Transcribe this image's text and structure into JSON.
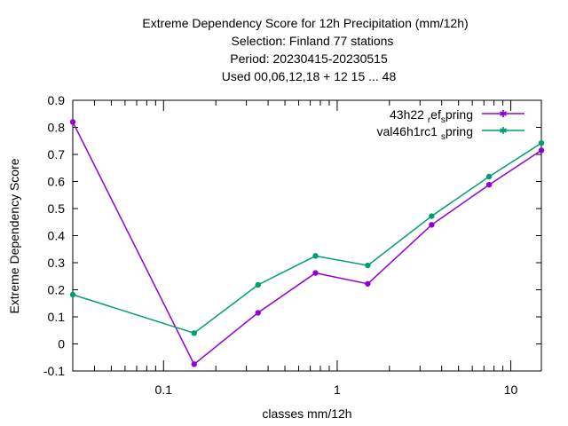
{
  "chart_data": {
    "type": "line",
    "title_lines": [
      "Extreme Dependency Score  for 12h Precipitation (mm/12h)",
      "Selection: Finland     77 stations",
      "Period: 20230415-20230515",
      "Used  00,06,12,18  + 12 15 ... 48"
    ],
    "xlabel": "classes mm/12h",
    "ylabel": "Extreme Dependency Score",
    "x_scale": "log",
    "xlim": [
      0.03,
      15
    ],
    "ylim": [
      -0.1,
      0.9
    ],
    "x_ticks": [
      {
        "value": 0.1,
        "label": "0.1"
      },
      {
        "value": 1,
        "label": "1"
      },
      {
        "value": 10,
        "label": "10"
      }
    ],
    "y_ticks": [
      "-0.1",
      "0",
      "0.1",
      "0.2",
      "0.3",
      "0.4",
      "0.5",
      "0.6",
      "0.7",
      "0.8",
      "0.9"
    ],
    "grid": false,
    "legend_position": "top-right",
    "series": [
      {
        "name_main": "43h22",
        "name_sub1": "r",
        "name_mid": "ef",
        "name_sub2": "s",
        "name_end": "pring",
        "color": "#9400d3",
        "x": [
          0.03,
          0.15,
          0.35,
          0.75,
          1.5,
          3.5,
          7.5,
          15
        ],
        "values": [
          0.82,
          -0.075,
          0.115,
          0.262,
          0.222,
          0.44,
          0.588,
          0.715
        ]
      },
      {
        "name_main": "val46h1rc1",
        "name_sub1": "s",
        "name_end": "pring",
        "color": "#009e73",
        "x": [
          0.03,
          0.15,
          0.35,
          0.75,
          1.5,
          3.5,
          7.5,
          15
        ],
        "values": [
          0.182,
          0.04,
          0.218,
          0.325,
          0.29,
          0.472,
          0.618,
          0.742
        ]
      }
    ]
  }
}
